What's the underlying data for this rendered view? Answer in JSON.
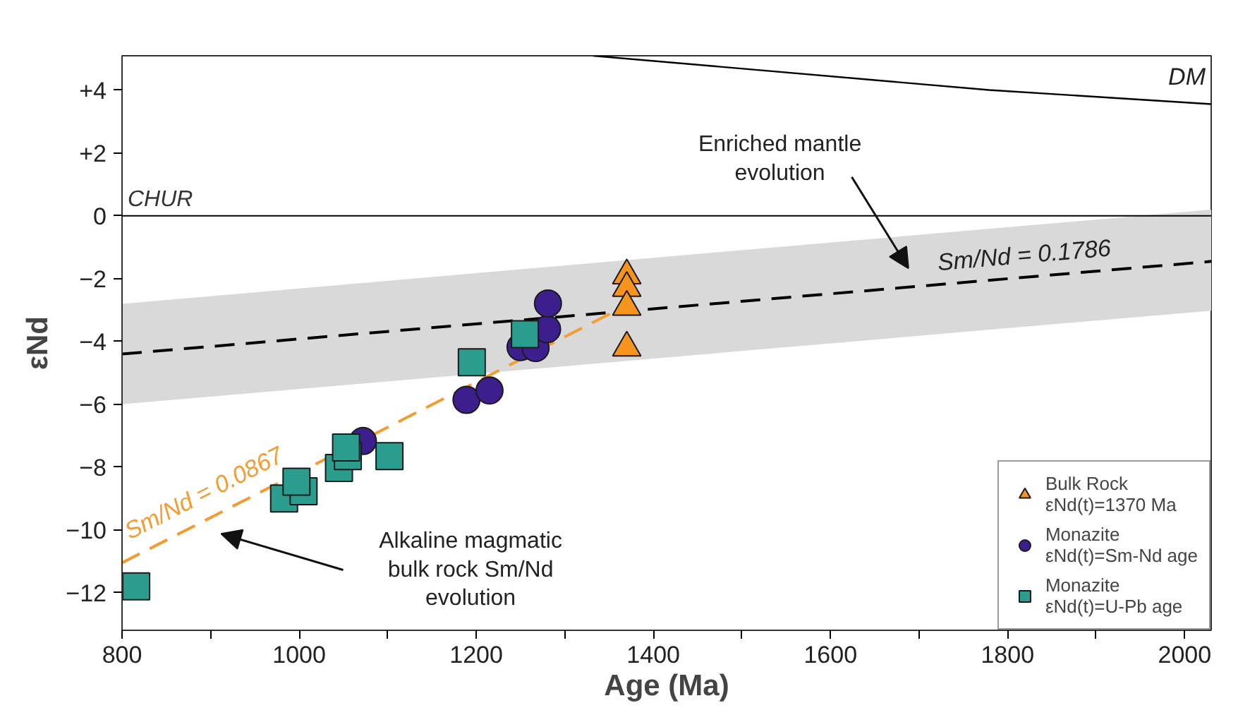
{
  "chart_data": {
    "type": "scatter",
    "xlabel": "Age (Ma)",
    "ylabel": "εNd",
    "xlim": [
      800,
      2030
    ],
    "ylim": [
      -13.2,
      5.1
    ],
    "xticks": [
      800,
      {
        "value": 900,
        "label": null
      },
      1000,
      {
        "value": 1100,
        "label": null
      },
      1200,
      {
        "value": 1300,
        "label": null
      },
      1400,
      {
        "value": 1500,
        "label": null
      },
      1600,
      {
        "value": 1700,
        "label": null
      },
      1800,
      {
        "value": 1900,
        "label": null
      },
      2000
    ],
    "yticks": [
      {
        "value": 4,
        "label": "+4"
      },
      {
        "value": 2,
        "label": "+2"
      },
      0,
      -2,
      -4,
      -6,
      -8,
      -10,
      -12
    ],
    "grid": false,
    "legend": "bottom right",
    "ref_lines": [
      {
        "axis": "y",
        "value": 0,
        "label": "CHUR",
        "color": "#000000",
        "line_style": "solid"
      }
    ],
    "series": [
      {
        "type": "line",
        "name": "DM",
        "color": "#000000",
        "line_style": "solid",
        "x": [
          1332,
          1779,
          2030
        ],
        "values": [
          5.1,
          4.01,
          3.56
        ]
      },
      {
        "type": "line",
        "name": "Sm/Nd = 0.1786",
        "color": "#000000",
        "line_style": "dashed",
        "x": [
          800,
          2030
        ],
        "values": [
          -4.4,
          -1.45
        ],
        "lower": [
          -6.0,
          -3.02
        ],
        "upper": [
          -2.8,
          0.2
        ]
      },
      {
        "type": "line",
        "name": "Sm/Nd = 0.0867",
        "color": "#f39c34",
        "line_style": "dashed",
        "x": [
          800,
          1353
        ],
        "values": [
          -11.05,
          -3.09
        ]
      },
      {
        "name": "Bulk Rock\nεNd(t)=1370 Ma",
        "marker": "triangle",
        "color": "#f7941d",
        "x": [
          1370,
          1370,
          1370,
          1370
        ],
        "values": [
          -1.9,
          -2.3,
          -2.9,
          -4.2
        ]
      },
      {
        "name": "Monazite\nεNd(t)=Sm-Nd age",
        "marker": "circle",
        "color": "#3c1f8c",
        "x": [
          1072,
          1189,
          1215,
          1250,
          1267,
          1280,
          1281
        ],
        "values": [
          -7.17,
          -5.86,
          -5.56,
          -4.18,
          -4.21,
          -3.61,
          -2.79
        ]
      },
      {
        "name": "Monazite\nεNd(t)=U-Pb age",
        "marker": "square",
        "color": "#2a9d8f",
        "x": [
          816,
          983,
          1005,
          997,
          1045,
          1055,
          1053,
          1102,
          1195,
          1255
        ],
        "values": [
          -11.8,
          -9.0,
          -8.77,
          -8.47,
          -8.03,
          -7.65,
          -7.38,
          -7.65,
          -4.66,
          -3.77
        ]
      }
    ],
    "annotations": [
      "Enriched mantle\nevolution",
      "Alkaline magmatic\nbulk rock Sm/Nd\nevolution"
    ]
  }
}
